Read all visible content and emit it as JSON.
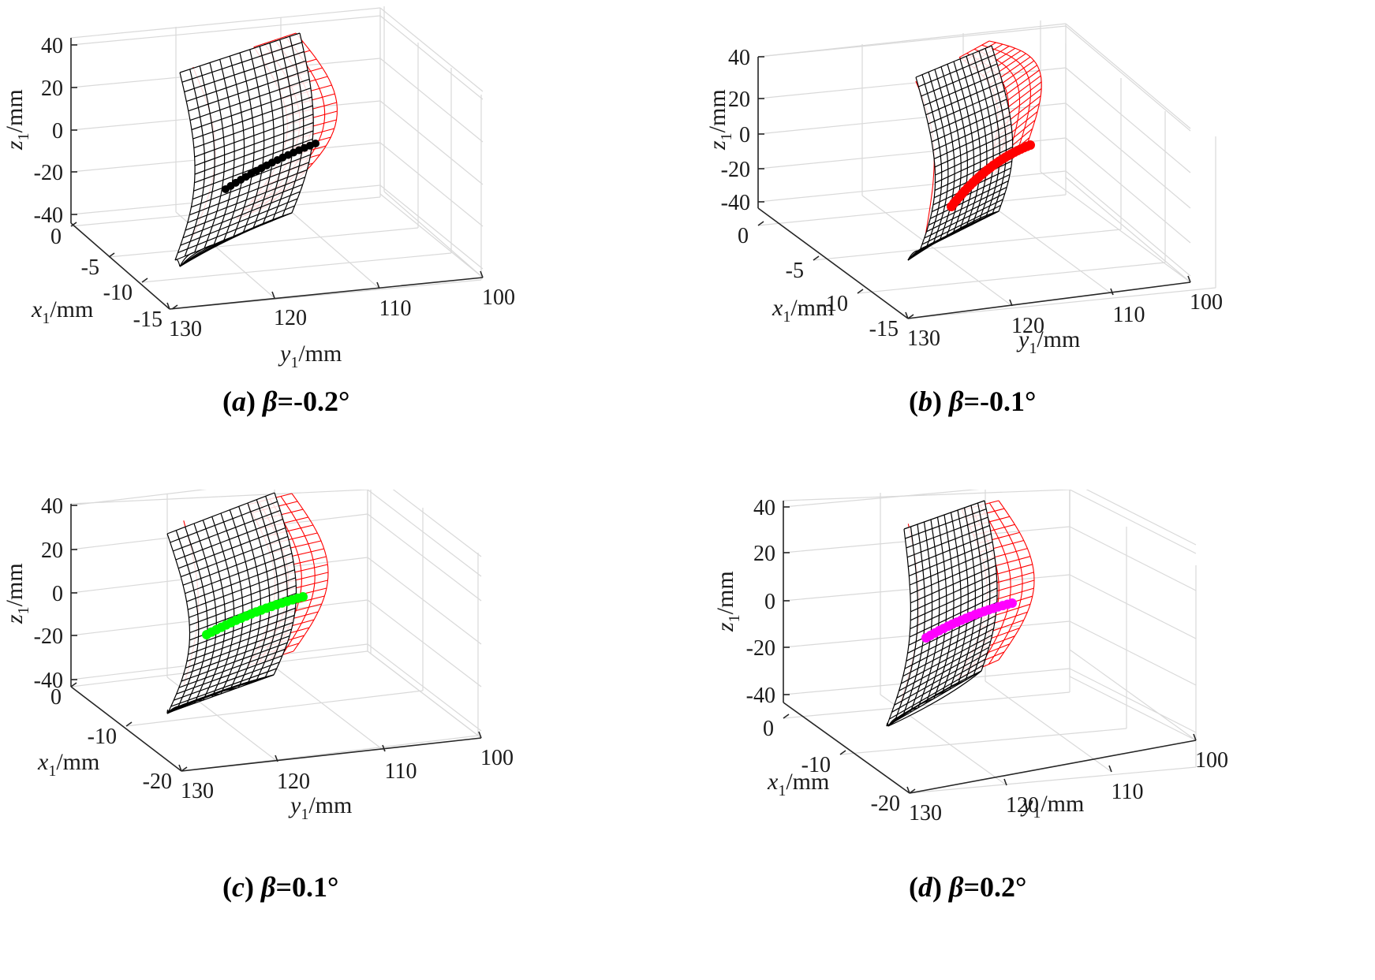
{
  "chart_data": [
    {
      "type": "surface3d",
      "caption": {
        "open": "(",
        "letter": "a",
        "close": ") ",
        "beta": "β=-0.2°"
      },
      "axes": {
        "x": {
          "var": "x",
          "sub": "1",
          "unit": "/mm",
          "ticks": [
            "0",
            "-5",
            "-10",
            "-15"
          ]
        },
        "y": {
          "var": "y",
          "sub": "1",
          "unit": "/mm",
          "ticks": [
            "130",
            "120",
            "110",
            "100"
          ]
        },
        "z": {
          "var": "z",
          "sub": "1",
          "unit": "/mm",
          "ticks": [
            "40",
            "20",
            "0",
            "-20",
            "-40"
          ]
        }
      },
      "grid": true,
      "series": [
        {
          "color": "#000000",
          "kind": "mesh surface"
        },
        {
          "color": "#ff0000",
          "kind": "mesh surface"
        },
        {
          "color": "#000000",
          "kind": "contact points"
        }
      ]
    },
    {
      "type": "surface3d",
      "caption": {
        "open": "(",
        "letter": "b",
        "close": ") ",
        "beta": "β=-0.1°"
      },
      "axes": {
        "x": {
          "var": "x",
          "sub": "1",
          "unit": "/mm",
          "ticks": [
            "0",
            "-5",
            "-10",
            "-15"
          ]
        },
        "y": {
          "var": "y",
          "sub": "1",
          "unit": "/mm",
          "ticks": [
            "130",
            "120",
            "110",
            "100"
          ]
        },
        "z": {
          "var": "z",
          "sub": "1",
          "unit": "/mm",
          "ticks": [
            "40",
            "20",
            "0",
            "-20",
            "-40"
          ]
        }
      },
      "grid": true,
      "series": [
        {
          "color": "#000000",
          "kind": "mesh surface"
        },
        {
          "color": "#ff0000",
          "kind": "mesh surface"
        },
        {
          "color": "#ff0000",
          "kind": "contact points"
        }
      ]
    },
    {
      "type": "surface3d",
      "caption": {
        "open": "(",
        "letter": "c",
        "close": ") ",
        "beta": "β=0.1°"
      },
      "axes": {
        "x": {
          "var": "x",
          "sub": "1",
          "unit": "/mm",
          "ticks": [
            "0",
            "-10",
            "-20"
          ]
        },
        "y": {
          "var": "y",
          "sub": "1",
          "unit": "/mm",
          "ticks": [
            "130",
            "120",
            "110",
            "100"
          ]
        },
        "z": {
          "var": "z",
          "sub": "1",
          "unit": "/mm",
          "ticks": [
            "40",
            "20",
            "0",
            "-20",
            "-40"
          ]
        }
      },
      "grid": true,
      "series": [
        {
          "color": "#000000",
          "kind": "mesh surface"
        },
        {
          "color": "#ff0000",
          "kind": "mesh surface"
        },
        {
          "color": "#00ff00",
          "kind": "contact points"
        }
      ]
    },
    {
      "type": "surface3d",
      "caption": {
        "open": "(",
        "letter": "d",
        "close": ") ",
        "beta": "β=0.2°"
      },
      "axes": {
        "x": {
          "var": "x",
          "sub": "1",
          "unit": "/mm",
          "ticks": [
            "0",
            "-10",
            "-20"
          ]
        },
        "y": {
          "var": "y",
          "sub": "1",
          "unit": "/mm",
          "ticks": [
            "130",
            "120",
            "110",
            "100"
          ]
        },
        "z": {
          "var": "z",
          "sub": "1",
          "unit": "/mm",
          "ticks": [
            "40",
            "20",
            "0",
            "-20",
            "-40"
          ]
        }
      },
      "grid": true,
      "series": [
        {
          "color": "#000000",
          "kind": "mesh surface"
        },
        {
          "color": "#ff0000",
          "kind": "mesh surface"
        },
        {
          "color": "#ff00ff",
          "kind": "contact points"
        }
      ]
    }
  ]
}
